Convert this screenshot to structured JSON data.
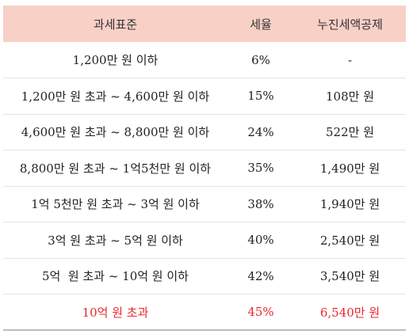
{
  "table": {
    "headers": [
      "과세표준",
      "세율",
      "누진세액공제"
    ],
    "rows": [
      {
        "bracket": "1,200만 원 이하",
        "rate": "6%",
        "deduction": "-"
      },
      {
        "bracket": "1,200만 원 초과 ~ 4,600만 원 이하",
        "rate": "15%",
        "deduction": "108만 원"
      },
      {
        "bracket": "4,600만 원 초과 ~ 8,800만 원 이하",
        "rate": "24%",
        "deduction": "522만 원"
      },
      {
        "bracket": "8,800만 원 초과 ~ 1억5천만 원 이하",
        "rate": "35%",
        "deduction": "1,490만 원"
      },
      {
        "bracket": "1억 5천만 원 초과 ~ 3억 원 이하",
        "rate": "38%",
        "deduction": "1,940만 원"
      },
      {
        "bracket": "3억 원 초과 ~ 5억 원 이하",
        "rate": "40%",
        "deduction": "2,540만 원"
      },
      {
        "bracket": "5억  원 초과 ~ 10억 원 이하",
        "rate": "42%",
        "deduction": "3,540만 원"
      },
      {
        "bracket": "10억 원 초과",
        "rate": "45%",
        "deduction": "6,540만 원"
      }
    ],
    "highlight_color": "#e8262b",
    "header_bg": "#f8d0c6"
  }
}
